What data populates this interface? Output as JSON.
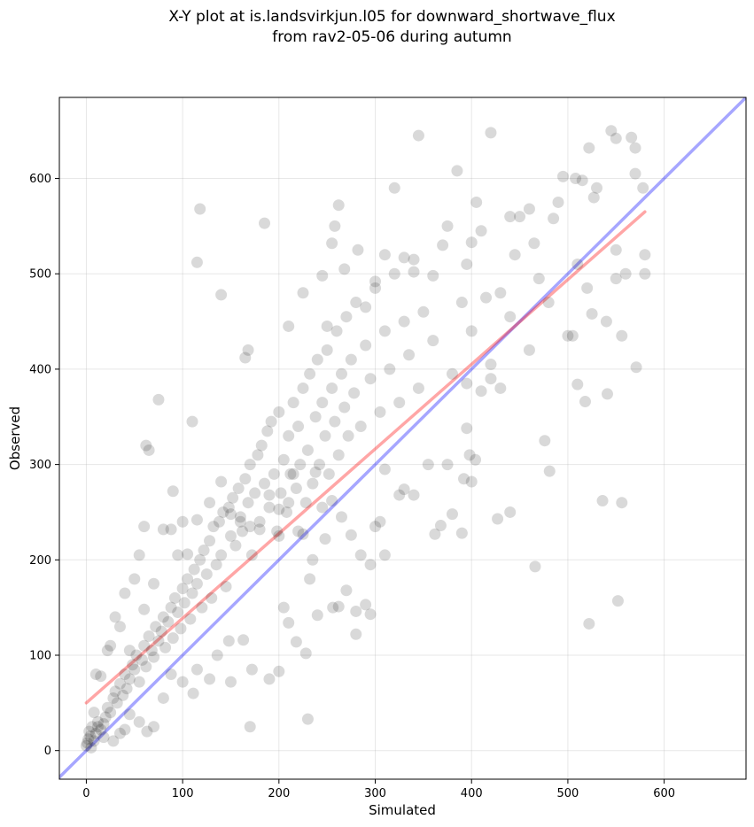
{
  "chart_data": {
    "type": "scatter",
    "title": "X-Y plot at is.landsvirkjun.l05 for downward_shortwave_flux",
    "subtitle": "from rav2-05-06 during autumn",
    "xlabel": "Simulated",
    "ylabel": "Observed",
    "xlim": [
      -28,
      685
    ],
    "ylim": [
      -30,
      685
    ],
    "xticks": [
      0,
      100,
      200,
      300,
      400,
      500,
      600
    ],
    "yticks": [
      0,
      100,
      200,
      300,
      400,
      500,
      600
    ],
    "grid": true,
    "colors": {
      "points": "#000000",
      "fit_line": "#ff0000",
      "identity_line": "#0000ff"
    },
    "series": [
      {
        "points": [
          [
            0,
            5
          ],
          [
            1,
            8
          ],
          [
            2,
            12
          ],
          [
            3,
            20
          ],
          [
            5,
            3
          ],
          [
            4,
            15
          ],
          [
            6,
            25
          ],
          [
            8,
            10
          ],
          [
            10,
            18
          ],
          [
            12,
            30
          ],
          [
            15,
            22
          ],
          [
            18,
            28
          ],
          [
            20,
            35
          ],
          [
            22,
            45
          ],
          [
            25,
            40
          ],
          [
            28,
            55
          ],
          [
            30,
            62
          ],
          [
            32,
            50
          ],
          [
            35,
            70
          ],
          [
            38,
            58
          ],
          [
            40,
            80
          ],
          [
            42,
            65
          ],
          [
            45,
            75
          ],
          [
            48,
            90
          ],
          [
            50,
            85
          ],
          [
            52,
            100
          ],
          [
            55,
            72
          ],
          [
            58,
            95
          ],
          [
            60,
            110
          ],
          [
            62,
            88
          ],
          [
            65,
            120
          ],
          [
            68,
            105
          ],
          [
            70,
            98
          ],
          [
            72,
            130
          ],
          [
            75,
            115
          ],
          [
            78,
            125
          ],
          [
            80,
            140
          ],
          [
            82,
            108
          ],
          [
            85,
            135
          ],
          [
            88,
            150
          ],
          [
            90,
            118
          ],
          [
            92,
            160
          ],
          [
            95,
            145
          ],
          [
            98,
            128
          ],
          [
            100,
            170
          ],
          [
            102,
            155
          ],
          [
            105,
            180
          ],
          [
            108,
            138
          ],
          [
            110,
            165
          ],
          [
            112,
            190
          ],
          [
            115,
            175
          ],
          [
            118,
            200
          ],
          [
            120,
            150
          ],
          [
            122,
            210
          ],
          [
            125,
            185
          ],
          [
            128,
            220
          ],
          [
            130,
            160
          ],
          [
            132,
            235
          ],
          [
            135,
            195
          ],
          [
            138,
            240
          ],
          [
            140,
            205
          ],
          [
            142,
            250
          ],
          [
            145,
            172
          ],
          [
            148,
            255
          ],
          [
            150,
            225
          ],
          [
            152,
            265
          ],
          [
            155,
            215
          ],
          [
            158,
            275
          ],
          [
            160,
            245
          ],
          [
            162,
            230
          ],
          [
            165,
            285
          ],
          [
            168,
            260
          ],
          [
            170,
            300
          ],
          [
            172,
            205
          ],
          [
            175,
            270
          ],
          [
            178,
            310
          ],
          [
            180,
            240
          ],
          [
            182,
            320
          ],
          [
            185,
            280
          ],
          [
            188,
            335
          ],
          [
            190,
            255
          ],
          [
            192,
            345
          ],
          [
            195,
            290
          ],
          [
            198,
            230
          ],
          [
            200,
            355
          ],
          [
            202,
            270
          ],
          [
            205,
            305
          ],
          [
            208,
            250
          ],
          [
            210,
            330
          ],
          [
            212,
            290
          ],
          [
            215,
            365
          ],
          [
            218,
            275
          ],
          [
            220,
            340
          ],
          [
            222,
            300
          ],
          [
            225,
            380
          ],
          [
            228,
            260
          ],
          [
            230,
            315
          ],
          [
            232,
            395
          ],
          [
            235,
            280
          ],
          [
            238,
            350
          ],
          [
            240,
            410
          ],
          [
            242,
            300
          ],
          [
            245,
            365
          ],
          [
            248,
            330
          ],
          [
            250,
            420
          ],
          [
            252,
            290
          ],
          [
            255,
            380
          ],
          [
            258,
            345
          ],
          [
            260,
            440
          ],
          [
            262,
            310
          ],
          [
            265,
            395
          ],
          [
            268,
            360
          ],
          [
            270,
            455
          ],
          [
            272,
            330
          ],
          [
            275,
            410
          ],
          [
            278,
            375
          ],
          [
            280,
            470
          ],
          [
            285,
            340
          ],
          [
            290,
            425
          ],
          [
            295,
            390
          ],
          [
            300,
            485
          ],
          [
            305,
            355
          ],
          [
            310,
            440
          ],
          [
            315,
            400
          ],
          [
            320,
            500
          ],
          [
            325,
            365
          ],
          [
            330,
            450
          ],
          [
            335,
            415
          ],
          [
            340,
            515
          ],
          [
            345,
            380
          ],
          [
            350,
            460
          ],
          [
            360,
            430
          ],
          [
            370,
            530
          ],
          [
            380,
            395
          ],
          [
            390,
            470
          ],
          [
            400,
            440
          ],
          [
            410,
            545
          ],
          [
            420,
            405
          ],
          [
            430,
            480
          ],
          [
            440,
            455
          ],
          [
            450,
            560
          ],
          [
            460,
            420
          ],
          [
            470,
            495
          ],
          [
            480,
            470
          ],
          [
            490,
            575
          ],
          [
            500,
            435
          ],
          [
            510,
            510
          ],
          [
            520,
            485
          ],
          [
            530,
            590
          ],
          [
            540,
            450
          ],
          [
            550,
            525
          ],
          [
            560,
            500
          ],
          [
            570,
            605
          ],
          [
            580,
            520
          ],
          [
            30,
            140
          ],
          [
            40,
            165
          ],
          [
            50,
            180
          ],
          [
            55,
            205
          ],
          [
            60,
            235
          ],
          [
            62,
            320
          ],
          [
            65,
            315
          ],
          [
            75,
            368
          ],
          [
            80,
            232
          ],
          [
            95,
            205
          ],
          [
            100,
            240
          ],
          [
            110,
            345
          ],
          [
            115,
            512
          ],
          [
            118,
            568
          ],
          [
            140,
            478
          ],
          [
            165,
            412
          ],
          [
            168,
            420
          ],
          [
            185,
            553
          ],
          [
            200,
            225
          ],
          [
            210,
            445
          ],
          [
            225,
            480
          ],
          [
            245,
            498
          ],
          [
            250,
            445
          ],
          [
            255,
            532
          ],
          [
            258,
            550
          ],
          [
            262,
            572
          ],
          [
            268,
            505
          ],
          [
            282,
            525
          ],
          [
            290,
            465
          ],
          [
            300,
            492
          ],
          [
            310,
            520
          ],
          [
            320,
            590
          ],
          [
            330,
            517
          ],
          [
            340,
            502
          ],
          [
            345,
            645
          ],
          [
            360,
            498
          ],
          [
            375,
            550
          ],
          [
            385,
            608
          ],
          [
            395,
            510
          ],
          [
            400,
            533
          ],
          [
            405,
            575
          ],
          [
            415,
            475
          ],
          [
            420,
            648
          ],
          [
            440,
            560
          ],
          [
            445,
            520
          ],
          [
            460,
            568
          ],
          [
            465,
            532
          ],
          [
            485,
            558
          ],
          [
            495,
            602
          ],
          [
            508,
            600
          ],
          [
            515,
            598
          ],
          [
            522,
            632
          ],
          [
            527,
            580
          ],
          [
            545,
            650
          ],
          [
            550,
            642
          ],
          [
            566,
            643
          ],
          [
            570,
            632
          ],
          [
            578,
            590
          ],
          [
            580,
            500
          ],
          [
            550,
            495
          ],
          [
            556,
            435
          ],
          [
            525,
            458
          ],
          [
            505,
            435
          ],
          [
            510,
            384
          ],
          [
            518,
            366
          ],
          [
            541,
            374
          ],
          [
            571,
            402
          ],
          [
            536,
            262
          ],
          [
            556,
            260
          ],
          [
            552,
            157
          ],
          [
            522,
            133
          ],
          [
            481,
            293
          ],
          [
            476,
            325
          ],
          [
            466,
            193
          ],
          [
            440,
            250
          ],
          [
            427,
            243
          ],
          [
            400,
            282
          ],
          [
            395,
            338
          ],
          [
            392,
            285
          ],
          [
            390,
            228
          ],
          [
            380,
            248
          ],
          [
            368,
            236
          ],
          [
            362,
            227
          ],
          [
            330,
            274
          ],
          [
            325,
            268
          ],
          [
            310,
            295
          ],
          [
            305,
            240
          ],
          [
            300,
            235
          ],
          [
            295,
            143
          ],
          [
            290,
            153
          ],
          [
            280,
            122
          ],
          [
            280,
            146
          ],
          [
            270,
            168
          ],
          [
            262,
            151
          ],
          [
            256,
            150
          ],
          [
            248,
            222
          ],
          [
            240,
            142
          ],
          [
            232,
            180
          ],
          [
            230,
            33
          ],
          [
            228,
            102
          ],
          [
            218,
            114
          ],
          [
            210,
            134
          ],
          [
            205,
            150
          ],
          [
            200,
            83
          ],
          [
            190,
            75
          ],
          [
            172,
            85
          ],
          [
            170,
            25
          ],
          [
            163,
            116
          ],
          [
            150,
            72
          ],
          [
            148,
            115
          ],
          [
            136,
            100
          ],
          [
            128,
            75
          ],
          [
            115,
            85
          ],
          [
            111,
            60
          ],
          [
            100,
            72
          ],
          [
            88,
            80
          ],
          [
            80,
            55
          ],
          [
            70,
            25
          ],
          [
            63,
            20
          ],
          [
            55,
            30
          ],
          [
            45,
            38
          ],
          [
            40,
            22
          ],
          [
            35,
            18
          ],
          [
            28,
            10
          ],
          [
            18,
            14
          ],
          [
            12,
            25
          ],
          [
            8,
            40
          ],
          [
            10,
            80
          ],
          [
            15,
            78
          ],
          [
            22,
            105
          ],
          [
            25,
            110
          ],
          [
            35,
            130
          ],
          [
            45,
            105
          ],
          [
            60,
            148
          ],
          [
            70,
            175
          ],
          [
            88,
            232
          ],
          [
            90,
            272
          ],
          [
            105,
            206
          ],
          [
            115,
            242
          ],
          [
            128,
            260
          ],
          [
            140,
            282
          ],
          [
            150,
            248
          ],
          [
            160,
            240
          ],
          [
            170,
            235
          ],
          [
            180,
            232
          ],
          [
            190,
            268
          ],
          [
            200,
            253
          ],
          [
            210,
            260
          ],
          [
            215,
            290
          ],
          [
            220,
            230
          ],
          [
            225,
            227
          ],
          [
            235,
            200
          ],
          [
            238,
            292
          ],
          [
            245,
            255
          ],
          [
            255,
            262
          ],
          [
            265,
            245
          ],
          [
            275,
            226
          ],
          [
            285,
            205
          ],
          [
            295,
            195
          ],
          [
            310,
            205
          ],
          [
            340,
            268
          ],
          [
            355,
            300
          ],
          [
            375,
            300
          ],
          [
            395,
            385
          ],
          [
            410,
            377
          ],
          [
            420,
            390
          ],
          [
            430,
            380
          ],
          [
            398,
            310
          ],
          [
            404,
            305
          ]
        ]
      }
    ],
    "fit_line": {
      "x": [
        0,
        580
      ],
      "y": [
        50,
        565
      ]
    },
    "identity_line": {
      "x": [
        -28,
        685
      ],
      "y": [
        -28,
        685
      ]
    }
  }
}
